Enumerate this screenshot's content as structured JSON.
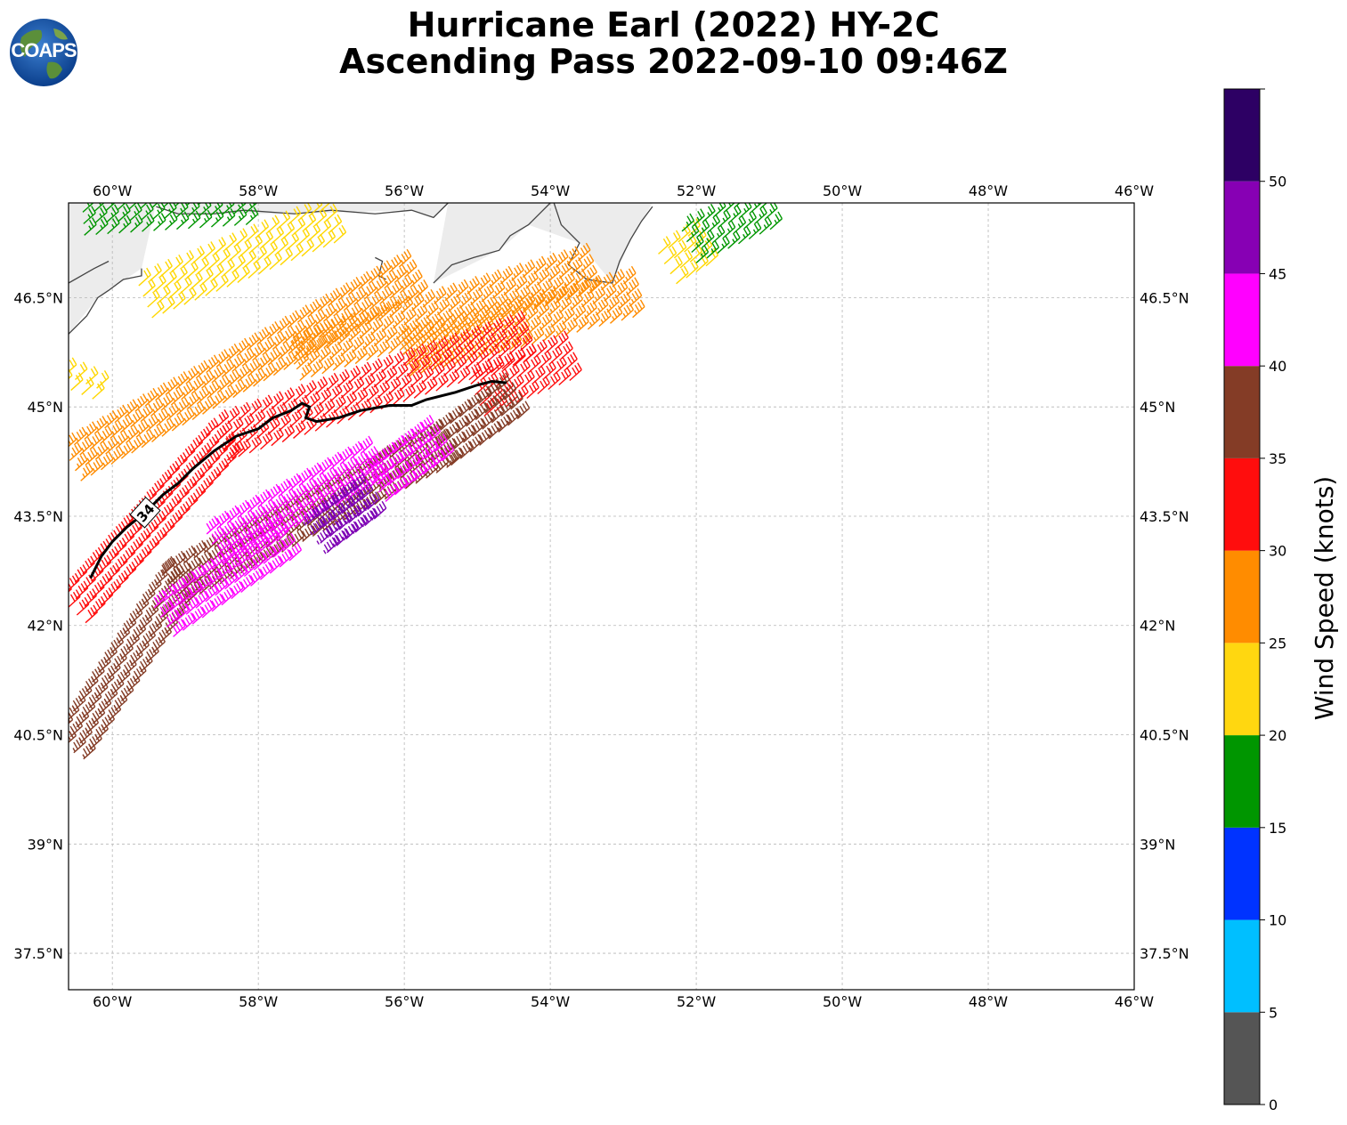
{
  "title": {
    "line1": "Hurricane Earl (2022) HY-2C",
    "line2": "Ascending Pass 2022-09-10 09:46Z"
  },
  "logo": {
    "text": "COAPS",
    "icon": "globe-icon"
  },
  "map": {
    "lon_range": [
      -60.6,
      -46.0
    ],
    "lat_range": [
      37.0,
      47.8
    ],
    "lon_ticks": [
      -60,
      -58,
      -56,
      -54,
      -52,
      -50,
      -48,
      -46
    ],
    "lon_tick_labels": [
      "60°W",
      "58°W",
      "56°W",
      "54°W",
      "52°W",
      "50°W",
      "48°W",
      "46°W"
    ],
    "lat_ticks": [
      37.5,
      39,
      40.5,
      42,
      43.5,
      45,
      46.5
    ],
    "lat_tick_labels": [
      "37.5°N",
      "39°N",
      "40.5°N",
      "42°N",
      "43.5°N",
      "45°N",
      "46.5°N"
    ],
    "contour_label": "34",
    "contour_34kt": [
      [
        -60.3,
        42.65
      ],
      [
        -60.15,
        42.95
      ],
      [
        -60.0,
        43.15
      ],
      [
        -59.8,
        43.35
      ],
      [
        -59.55,
        43.55
      ],
      [
        -59.3,
        43.8
      ],
      [
        -59.1,
        43.95
      ],
      [
        -58.9,
        44.15
      ],
      [
        -58.6,
        44.4
      ],
      [
        -58.3,
        44.6
      ],
      [
        -58.0,
        44.7
      ],
      [
        -57.8,
        44.85
      ],
      [
        -57.55,
        44.95
      ],
      [
        -57.4,
        45.05
      ],
      [
        -57.3,
        45.0
      ],
      [
        -57.35,
        44.85
      ],
      [
        -57.2,
        44.8
      ],
      [
        -56.9,
        44.85
      ],
      [
        -56.6,
        44.95
      ],
      [
        -56.2,
        45.02
      ],
      [
        -55.9,
        45.02
      ],
      [
        -55.7,
        45.1
      ],
      [
        -55.3,
        45.2
      ],
      [
        -55.0,
        45.3
      ],
      [
        -54.8,
        45.35
      ],
      [
        -54.6,
        45.33
      ]
    ],
    "coastlines": [
      [
        [
          -60.6,
          46.0
        ],
        [
          -60.35,
          46.25
        ],
        [
          -60.2,
          46.5
        ],
        [
          -60.05,
          46.6
        ],
        [
          -59.85,
          46.75
        ],
        [
          -59.6,
          46.8
        ],
        [
          -59.6,
          46.9
        ]
      ],
      [
        [
          -60.6,
          46.7
        ],
        [
          -60.25,
          46.9
        ],
        [
          -60.05,
          47.0
        ]
      ],
      [
        [
          -59.4,
          47.75
        ],
        [
          -59.1,
          47.65
        ],
        [
          -58.6,
          47.65
        ],
        [
          -58.2,
          47.7
        ],
        [
          -57.5,
          47.65
        ],
        [
          -57.0,
          47.7
        ],
        [
          -56.4,
          47.65
        ],
        [
          -55.9,
          47.7
        ],
        [
          -55.6,
          47.6
        ],
        [
          -55.4,
          47.8
        ]
      ],
      [
        [
          -55.6,
          46.7
        ],
        [
          -55.35,
          46.95
        ],
        [
          -55.05,
          47.05
        ],
        [
          -54.7,
          47.15
        ],
        [
          -54.55,
          47.35
        ],
        [
          -54.3,
          47.5
        ],
        [
          -54.15,
          47.65
        ],
        [
          -54.0,
          47.8
        ]
      ],
      [
        [
          -53.95,
          47.8
        ],
        [
          -53.85,
          47.5
        ],
        [
          -53.6,
          47.25
        ],
        [
          -53.75,
          46.95
        ],
        [
          -53.5,
          46.75
        ],
        [
          -53.15,
          46.7
        ],
        [
          -53.05,
          47.0
        ],
        [
          -52.9,
          47.3
        ],
        [
          -52.75,
          47.55
        ],
        [
          -52.6,
          47.75
        ]
      ],
      [
        [
          -56.4,
          47.05
        ],
        [
          -56.3,
          47.0
        ],
        [
          -56.35,
          46.8
        ],
        [
          -56.25,
          46.75
        ]
      ]
    ],
    "barb_groups": [
      {
        "color": "#ff8c00",
        "speed": 27,
        "rows": [
          [
            -60.55,
            44.2,
            -55.9,
            46.75
          ],
          [
            -57.5,
            45.6,
            -53.5,
            46.8
          ],
          [
            -56.0,
            45.65,
            -52.8,
            46.5
          ]
        ]
      },
      {
        "color": "#ffd700",
        "speed": 22,
        "rows": [
          [
            -59.55,
            46.45,
            -57.0,
            47.5
          ],
          [
            -60.5,
            45.2,
            -60.4,
            45.45
          ],
          [
            -52.4,
            46.9,
            -51.9,
            47.2
          ]
        ]
      },
      {
        "color": "#009600",
        "speed": 17,
        "rows": [
          [
            -60.4,
            47.6,
            -58.1,
            47.75
          ],
          [
            -52.1,
            47.2,
            -51.0,
            47.7
          ]
        ]
      },
      {
        "color": "#ff0d0d",
        "speed": 32,
        "rows": [
          [
            -60.55,
            42.2,
            -58.5,
            44.5
          ],
          [
            -58.5,
            44.5,
            -54.3,
            45.9
          ],
          [
            -55.0,
            45.1,
            -53.8,
            45.6
          ]
        ]
      },
      {
        "color": "#843c26",
        "speed": 37,
        "rows": [
          [
            -60.6,
            40.3,
            -59.1,
            42.6
          ],
          [
            -59.2,
            42.5,
            -55.5,
            44.4
          ],
          [
            -55.5,
            44.4,
            -54.5,
            45.1
          ]
        ]
      },
      {
        "color": "#ff00ff",
        "speed": 42,
        "rows": [
          [
            -59.3,
            42.05,
            -57.7,
            43.1
          ],
          [
            -58.6,
            43.05,
            -56.4,
            44.2
          ],
          [
            -56.4,
            43.9,
            -55.5,
            44.55
          ]
        ]
      },
      {
        "color": "#7d00b4",
        "speed": 47,
        "rows": [
          [
            -57.2,
            43.2,
            -56.5,
            43.7
          ]
        ]
      }
    ]
  },
  "colorbar": {
    "label": "Wind Speed (knots)",
    "ticks": [
      0,
      5,
      10,
      15,
      20,
      25,
      30,
      35,
      40,
      45,
      50
    ],
    "tick_labels": [
      "0",
      "5",
      "10",
      "15",
      "20",
      "25",
      "30",
      "35",
      "40",
      "45",
      "50"
    ],
    "colors": [
      "#555555",
      "#00bfff",
      "#0033ff",
      "#009600",
      "#ffd710",
      "#ff8c00",
      "#ff0d0d",
      "#843c26",
      "#ff00ff",
      "#8700b4",
      "#2d0064"
    ]
  }
}
